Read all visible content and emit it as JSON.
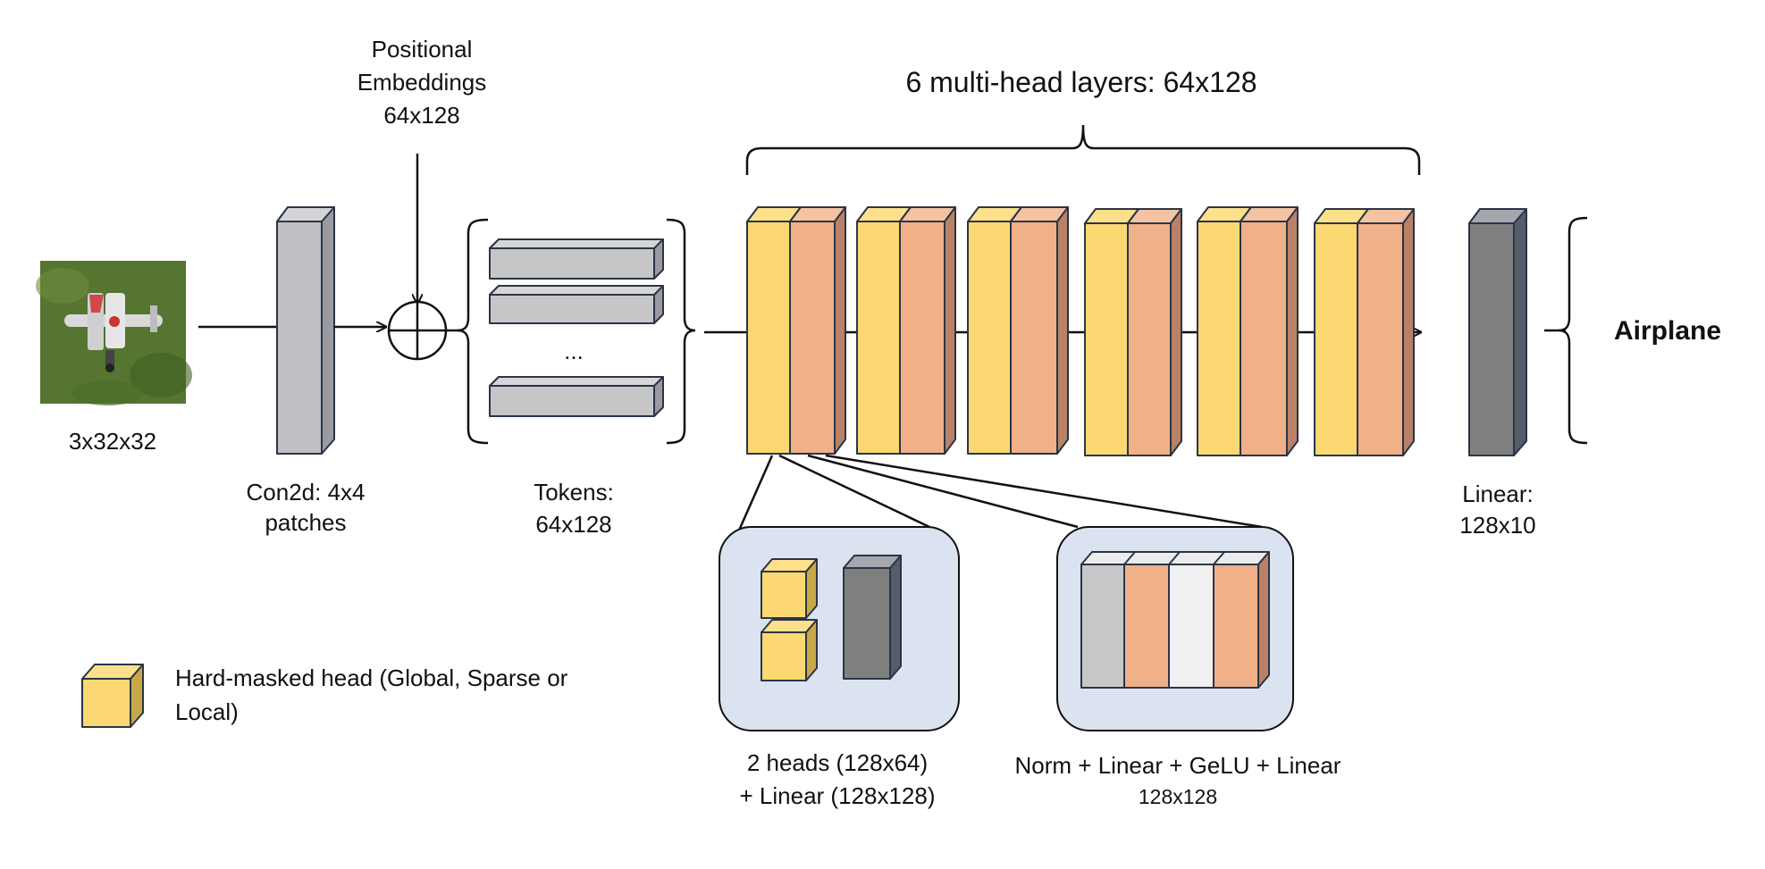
{
  "input": {
    "label": "3x32x32"
  },
  "conv": {
    "label_line1": "Con2d: 4x4",
    "label_line2": "patches"
  },
  "positional": {
    "line1": "Positional",
    "line2": "Embeddings",
    "line3": "64x128"
  },
  "tokens": {
    "ellipsis": "...",
    "label_line1": "Tokens:",
    "label_line2": "64x128"
  },
  "layers": {
    "title": "6 multi-head layers: 64x128",
    "count": 6
  },
  "linear": {
    "label_line1": "Linear:",
    "label_line2": "128x10"
  },
  "output": {
    "label": "Airplane"
  },
  "detail_heads": {
    "line1": "2 heads (128x64)",
    "line2": "+ Linear (128x128)"
  },
  "detail_mlp": {
    "line1": "Norm + Linear + GeLU + Linear",
    "line2": "128x128"
  },
  "legend": {
    "line1": "Hard-masked head (Global, Sparse or",
    "line2": "Local)"
  },
  "colors": {
    "head": "#fbd872",
    "mlp": "#f0b088",
    "conv": "#c0c0c4",
    "linear": "#7f7f7f",
    "norm": "#c8c8c8",
    "gelu": "#f0f0f0",
    "panel": "#dbe3f1",
    "token": "#c6c6c8",
    "grass": "#5a7a32"
  }
}
